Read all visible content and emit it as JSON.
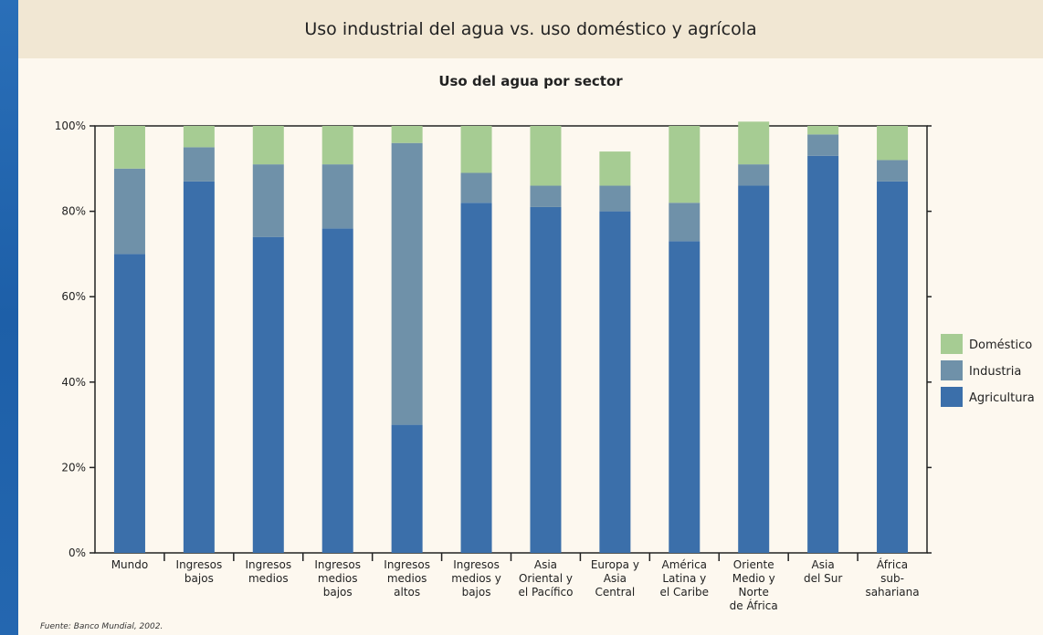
{
  "header": {
    "title": "Uso industrial del agua vs. uso doméstico y agrícola"
  },
  "footer": {
    "source": "Fuente: Banco Mundial, 2002."
  },
  "colors": {
    "domestico": "#a6cc93",
    "industria": "#6f91a9",
    "agricultura": "#3b6faa"
  },
  "chart_data": {
    "type": "bar",
    "stacked": true,
    "title": "Uso del agua por sector",
    "xlabel": "",
    "ylabel": "",
    "ylim": [
      0,
      100
    ],
    "yticks": [
      "0%",
      "20%",
      "40%",
      "60%",
      "80%",
      "100%"
    ],
    "legend_position": "right",
    "grid": false,
    "categories": [
      [
        "Mundo"
      ],
      [
        "Ingresos",
        "bajos"
      ],
      [
        "Ingresos",
        "medios"
      ],
      [
        "Ingresos",
        "medios",
        "bajos"
      ],
      [
        "Ingresos",
        "medios",
        "altos"
      ],
      [
        "Ingresos",
        "medios y",
        "bajos"
      ],
      [
        "Asia",
        "Oriental y",
        "el Pacífico"
      ],
      [
        "Europa y",
        "Asia",
        "Central"
      ],
      [
        "América",
        "Latina y",
        "el Caribe"
      ],
      [
        "Oriente",
        "Medio y",
        "Norte",
        "de África"
      ],
      [
        "Asia",
        "del Sur"
      ],
      [
        "África",
        "sub-",
        "sahariana"
      ]
    ],
    "series": [
      {
        "name": "Agricultura",
        "values": [
          70,
          87,
          74,
          76,
          30,
          82,
          81,
          80,
          73,
          86,
          93,
          87
        ]
      },
      {
        "name": "Industria",
        "values": [
          20,
          8,
          17,
          15,
          66,
          7,
          5,
          6,
          9,
          5,
          5,
          5
        ]
      },
      {
        "name": "Doméstico",
        "values": [
          10,
          5,
          9,
          9,
          4,
          11,
          14,
          8,
          18,
          10,
          2,
          8
        ]
      }
    ],
    "legend": [
      "Doméstico",
      "Industria",
      "Agricultura"
    ]
  }
}
